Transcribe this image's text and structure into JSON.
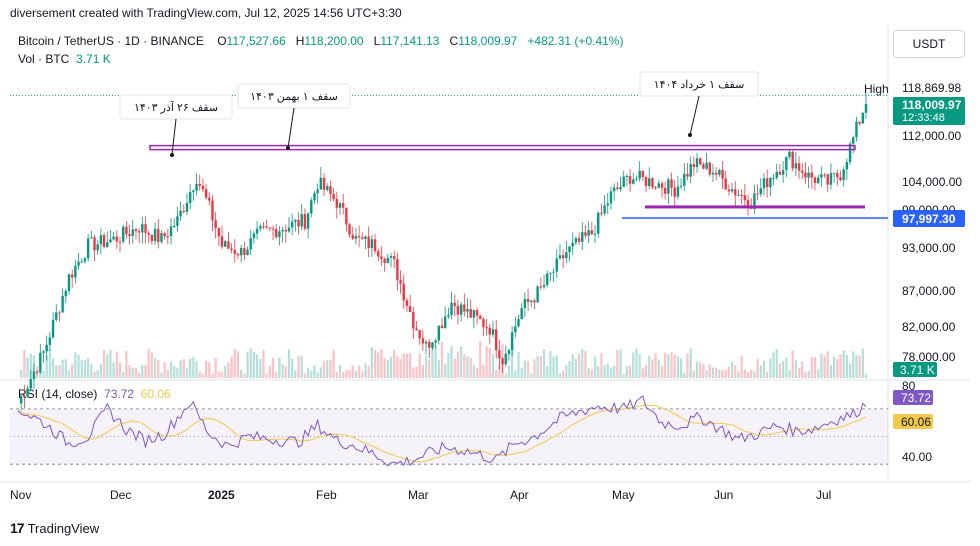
{
  "header": {
    "created_by": "diversement created with TradingView.com, Jul 12, 2025 14:56 UTC+3:30",
    "symbol": "Bitcoin / TetherUS · 1D · BINANCE",
    "o_label": "O",
    "o_value": "117,527.66",
    "h_label": "H",
    "h_value": "118,200.00",
    "l_label": "L",
    "l_value": "117,141.13",
    "c_label": "C",
    "c_value": "118,009.97",
    "change": "+482.31 (+0.41%)",
    "vol_label": "Vol · BTC",
    "vol_value": "3.71 K"
  },
  "currency_button": "USDT",
  "rsi": {
    "label": "RSI (14, close)",
    "value": "73.72",
    "ma_value": "60.06",
    "badge_rsi": "73.72",
    "badge_ma": "60.06"
  },
  "footer": {
    "brand": "TradingView"
  },
  "colors": {
    "up": "#089981",
    "down": "#f23645",
    "rsi": "#7e57c2",
    "rsi_ma": "#f2c94c",
    "level": "#9c27b0",
    "support": "#2962ff"
  },
  "chart_data": {
    "type": "candlestick",
    "x_ticks": [
      "Nov",
      "Dec",
      "2025",
      "Feb",
      "Mar",
      "Apr",
      "May",
      "Jun",
      "Jul"
    ],
    "y_ticks": [
      "112,000.00",
      "104,000.00",
      "99,000.00",
      "93,000.00",
      "87,000.00",
      "82,000.00",
      "78,000.00"
    ],
    "high_label": "High",
    "high_value": "118,869.98",
    "last_price": "118,009.97",
    "countdown": "12:33:48",
    "support_price": "97,997.30",
    "volume_badge": "3.71 K",
    "rsi_ticks": [
      "80",
      "40.00"
    ],
    "annotations": [
      {
        "text": "سقف ۲۶ آذر ۱۴۰۳"
      },
      {
        "text": "سقف ۱ بهمن ۱۴۰۳"
      },
      {
        "text": "سقف ۱ خرداد ۱۴۰۴"
      }
    ],
    "price_path": [
      [
        0,
        70000
      ],
      [
        8,
        78000
      ],
      [
        16,
        90000
      ],
      [
        22,
        95000
      ],
      [
        30,
        96000
      ],
      [
        38,
        98000
      ],
      [
        45,
        96000
      ],
      [
        50,
        99000
      ],
      [
        56,
        106000
      ],
      [
        60,
        101000
      ],
      [
        64,
        95000
      ],
      [
        70,
        94000
      ],
      [
        76,
        97000
      ],
      [
        84,
        98000
      ],
      [
        90,
        99000
      ],
      [
        94,
        105000
      ],
      [
        100,
        102000
      ],
      [
        106,
        96000
      ],
      [
        112,
        95000
      ],
      [
        118,
        92000
      ],
      [
        124,
        83000
      ],
      [
        128,
        79000
      ],
      [
        132,
        82000
      ],
      [
        136,
        86000
      ],
      [
        142,
        84000
      ],
      [
        148,
        82000
      ],
      [
        152,
        77000
      ],
      [
        158,
        85000
      ],
      [
        164,
        88000
      ],
      [
        172,
        94000
      ],
      [
        180,
        97000
      ],
      [
        186,
        103000
      ],
      [
        192,
        106000
      ],
      [
        200,
        105000
      ],
      [
        206,
        104000
      ],
      [
        212,
        108000
      ],
      [
        218,
        107000
      ],
      [
        224,
        104000
      ],
      [
        230,
        102000
      ],
      [
        236,
        106000
      ],
      [
        242,
        109000
      ],
      [
        248,
        106000
      ],
      [
        254,
        105000
      ],
      [
        258,
        106500
      ],
      [
        262,
        112000
      ],
      [
        266,
        118000
      ]
    ],
    "rsi_path": [
      [
        0,
        70
      ],
      [
        8,
        60
      ],
      [
        16,
        45
      ],
      [
        22,
        50
      ],
      [
        28,
        70
      ],
      [
        34,
        55
      ],
      [
        40,
        47
      ],
      [
        46,
        52
      ],
      [
        54,
        75
      ],
      [
        60,
        52
      ],
      [
        66,
        43
      ],
      [
        72,
        50
      ],
      [
        80,
        48
      ],
      [
        88,
        46
      ],
      [
        94,
        58
      ],
      [
        100,
        47
      ],
      [
        106,
        43
      ],
      [
        112,
        37
      ],
      [
        118,
        30
      ],
      [
        124,
        33
      ],
      [
        128,
        37
      ],
      [
        134,
        42
      ],
      [
        140,
        40
      ],
      [
        146,
        36
      ],
      [
        150,
        33
      ],
      [
        156,
        45
      ],
      [
        162,
        50
      ],
      [
        170,
        63
      ],
      [
        176,
        68
      ],
      [
        182,
        72
      ],
      [
        190,
        70
      ],
      [
        196,
        76
      ],
      [
        202,
        60
      ],
      [
        208,
        58
      ],
      [
        214,
        64
      ],
      [
        220,
        56
      ],
      [
        226,
        48
      ],
      [
        232,
        52
      ],
      [
        238,
        58
      ],
      [
        244,
        54
      ],
      [
        250,
        56
      ],
      [
        256,
        62
      ],
      [
        262,
        66
      ],
      [
        266,
        74
      ]
    ]
  }
}
